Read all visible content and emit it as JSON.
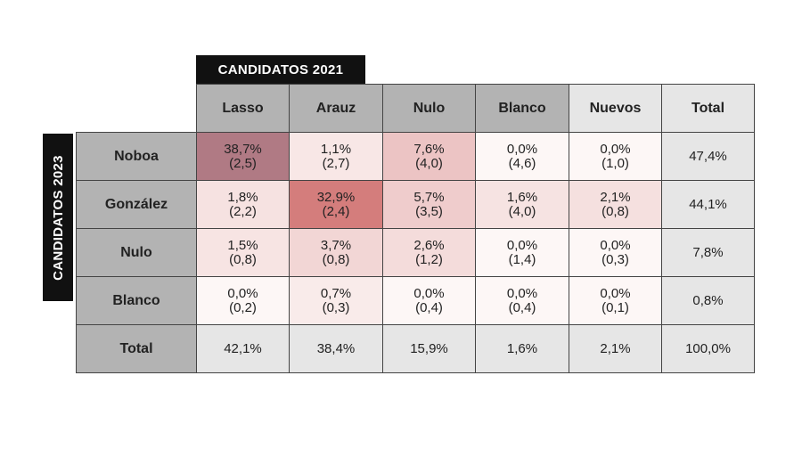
{
  "captions": {
    "top": "CANDIDATOS 2021",
    "side": "CANDIDATOS 2023"
  },
  "columns": [
    {
      "label": "Lasso",
      "bg": "#b3b3b3"
    },
    {
      "label": "Arauz",
      "bg": "#b3b3b3"
    },
    {
      "label": "Nulo",
      "bg": "#b3b3b3"
    },
    {
      "label": "Blanco",
      "bg": "#b3b3b3"
    },
    {
      "label": "Nuevos",
      "bg": "#e6e6e6"
    },
    {
      "label": "Total",
      "bg": "#e6e6e6"
    }
  ],
  "rows": [
    {
      "label": "Noboa",
      "cells": [
        {
          "pct": "38,7%",
          "err": "(2,5)"
        },
        {
          "pct": "1,1%",
          "err": "(2,7)"
        },
        {
          "pct": "7,6%",
          "err": "(4,0)"
        },
        {
          "pct": "0,0%",
          "err": "(4,6)"
        },
        {
          "pct": "0,0%",
          "err": "(1,0)"
        }
      ],
      "total": "47,4%"
    },
    {
      "label": "González",
      "cells": [
        {
          "pct": "1,8%",
          "err": "(2,2)"
        },
        {
          "pct": "32,9%",
          "err": "(2,4)"
        },
        {
          "pct": "5,7%",
          "err": "(3,5)"
        },
        {
          "pct": "1,6%",
          "err": "(4,0)"
        },
        {
          "pct": "2,1%",
          "err": "(0,8)"
        }
      ],
      "total": "44,1%"
    },
    {
      "label": "Nulo",
      "cells": [
        {
          "pct": "1,5%",
          "err": "(0,8)"
        },
        {
          "pct": "3,7%",
          "err": "(0,8)"
        },
        {
          "pct": "2,6%",
          "err": "(1,2)"
        },
        {
          "pct": "0,0%",
          "err": "(1,4)"
        },
        {
          "pct": "0,0%",
          "err": "(0,3)"
        }
      ],
      "total": "7,8%"
    },
    {
      "label": "Blanco",
      "cells": [
        {
          "pct": "0,0%",
          "err": "(0,2)"
        },
        {
          "pct": "0,7%",
          "err": "(0,3)"
        },
        {
          "pct": "0,0%",
          "err": "(0,4)"
        },
        {
          "pct": "0,0%",
          "err": "(0,4)"
        },
        {
          "pct": "0,0%",
          "err": "(0,1)"
        }
      ],
      "total": "0,8%"
    }
  ],
  "totals_row": {
    "label": "Total",
    "values": [
      "42,1%",
      "38,4%",
      "15,9%",
      "1,6%",
      "2,1%",
      "100,0%"
    ]
  },
  "chart_data": {
    "type": "heatmap",
    "title": "",
    "x_categories": [
      "Lasso",
      "Arauz",
      "Nulo",
      "Blanco",
      "Nuevos"
    ],
    "y_categories": [
      "Noboa",
      "González",
      "Nulo",
      "Blanco"
    ],
    "values": [
      [
        38.7,
        1.1,
        7.6,
        0.0,
        0.0
      ],
      [
        1.8,
        32.9,
        5.7,
        1.6,
        2.1
      ],
      [
        1.5,
        3.7,
        2.6,
        0.0,
        0.0
      ],
      [
        0.0,
        0.7,
        0.0,
        0.0,
        0.0
      ]
    ],
    "errors": [
      [
        2.5,
        2.7,
        4.0,
        4.6,
        1.0
      ],
      [
        2.2,
        2.4,
        3.5,
        4.0,
        0.8
      ],
      [
        0.8,
        0.8,
        1.2,
        1.4,
        0.3
      ],
      [
        0.2,
        0.3,
        0.4,
        0.4,
        0.1
      ]
    ],
    "row_totals": [
      47.4,
      44.1,
      7.8,
      0.8
    ],
    "col_totals": [
      42.1,
      38.4,
      15.9,
      1.6,
      2.1
    ],
    "grand_total": 100.0,
    "colors": {
      "scale_low": "#ffffff",
      "scale_high": "#d07070",
      "highlight_noboa_lasso": "#b07a84"
    }
  }
}
